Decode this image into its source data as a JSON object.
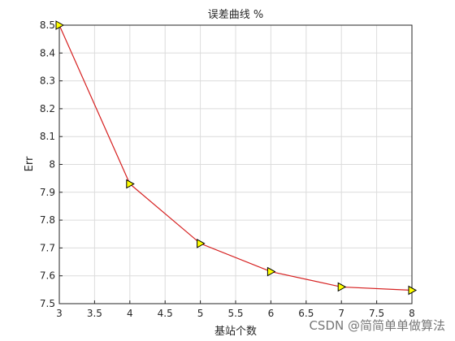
{
  "chart_data": {
    "type": "line",
    "title": "误差曲线 %",
    "xlabel": "基站个数",
    "ylabel": "Err",
    "x": [
      3,
      4,
      5,
      6,
      7,
      8
    ],
    "series": [
      {
        "name": "Err",
        "color": "#d62020",
        "marker_color": "#ffff00",
        "values": [
          8.5,
          7.93,
          7.716,
          7.615,
          7.56,
          7.548
        ]
      }
    ],
    "xlim": [
      3,
      8
    ],
    "xticks": [
      3,
      3.5,
      4,
      4.5,
      5,
      5.5,
      6,
      6.5,
      7,
      7.5,
      8
    ],
    "ylim": [
      7.5,
      8.5
    ],
    "yticks": [
      7.5,
      7.6,
      7.7,
      7.8,
      7.9,
      8,
      8.1,
      8.2,
      8.3,
      8.4,
      8.5
    ],
    "grid": true,
    "watermark": "CSDN @简简单单做算法"
  }
}
